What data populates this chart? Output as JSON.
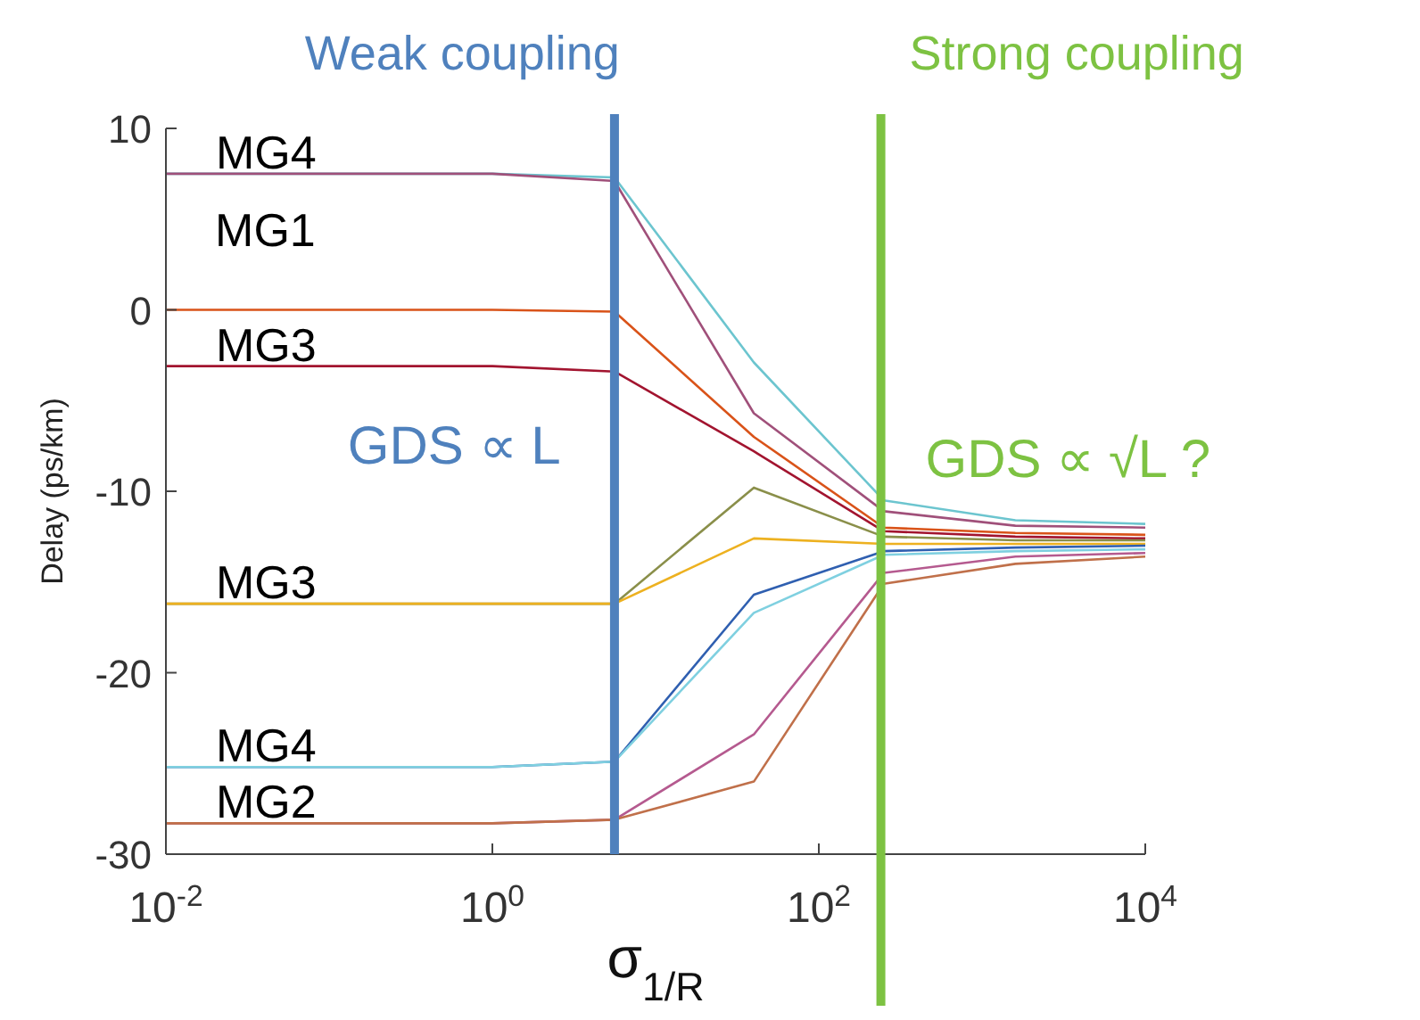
{
  "chart_data": {
    "type": "line",
    "xlabel": "σ$_{1/R}$",
    "ylabel": "Delay (ps/km)",
    "log": "x",
    "x": [
      0.01,
      0.1,
      1,
      5.6,
      40,
      250,
      1600,
      10000
    ],
    "xlim": [
      0.01,
      10000
    ],
    "xticks": [
      {
        "value": 0.01,
        "label": "10$^{-2}$"
      },
      {
        "value": 1,
        "label": "10$^{0}$"
      },
      {
        "value": 100,
        "label": "10$^{2}$"
      },
      {
        "value": 10000,
        "label": "10$^{4}$"
      }
    ],
    "ylim": [
      -30,
      10
    ],
    "yticks": [
      -30,
      -20,
      -10,
      0,
      10
    ],
    "marker": "none",
    "line_style": "solid",
    "series": [
      {
        "color": "#6cc5cf",
        "values": [
          7.5,
          7.5,
          7.5,
          7.3,
          -2.9,
          -10.5,
          -11.6,
          -11.8
        ]
      },
      {
        "color": "#a0507a",
        "values": [
          7.5,
          7.5,
          7.5,
          7.1,
          -5.7,
          -11.1,
          -11.9,
          -12.0
        ]
      },
      {
        "color": "#d95319",
        "values": [
          0,
          0,
          0,
          -0.1,
          -7.0,
          -12.0,
          -12.3,
          -12.4
        ]
      },
      {
        "color": "#a2142f",
        "values": [
          -3.1,
          -3.1,
          -3.1,
          -3.4,
          -7.8,
          -12.2,
          -12.5,
          -12.6
        ]
      },
      {
        "color": "#8a8f4a",
        "values": [
          -16.2,
          -16.2,
          -16.2,
          -16.2,
          -9.8,
          -12.5,
          -12.7,
          -12.7
        ]
      },
      {
        "color": "#edb120",
        "values": [
          -16.2,
          -16.2,
          -16.2,
          -16.2,
          -12.6,
          -12.9,
          -12.9,
          -12.9
        ]
      },
      {
        "color": "#2f5fb0",
        "values": [
          -25.2,
          -25.2,
          -25.2,
          -24.9,
          -15.7,
          -13.3,
          -13.1,
          -13.0
        ]
      },
      {
        "color": "#7fd0e0",
        "values": [
          -25.2,
          -25.2,
          -25.2,
          -24.9,
          -16.7,
          -13.5,
          -13.3,
          -13.2
        ]
      },
      {
        "color": "#b55a8f",
        "values": [
          -28.3,
          -28.3,
          -28.3,
          -28.1,
          -23.4,
          -14.5,
          -13.6,
          -13.4
        ]
      },
      {
        "color": "#c0704a",
        "values": [
          -28.3,
          -28.3,
          -28.3,
          -28.1,
          -26.0,
          -15.1,
          -14.0,
          -13.6
        ]
      }
    ],
    "ref_lines": [
      {
        "axis": "x",
        "value": 5.6,
        "label": "Weak coupling",
        "color": "#4f81bd"
      },
      {
        "axis": "x",
        "value": 240,
        "label": "Strong coupling",
        "color": "#7dc242"
      }
    ],
    "annotations": [
      {
        "text": "MG4",
        "y": 7.5
      },
      "MG1",
      {
        "text": "MG3",
        "y": -3.1
      },
      {
        "text": "MG3",
        "y": -16.2
      },
      {
        "text": "MG4",
        "y": -25.2
      },
      {
        "text": "MG2",
        "y": -28.3
      },
      "GDS ∝ L",
      "GDS ∝ √L ?"
    ]
  }
}
